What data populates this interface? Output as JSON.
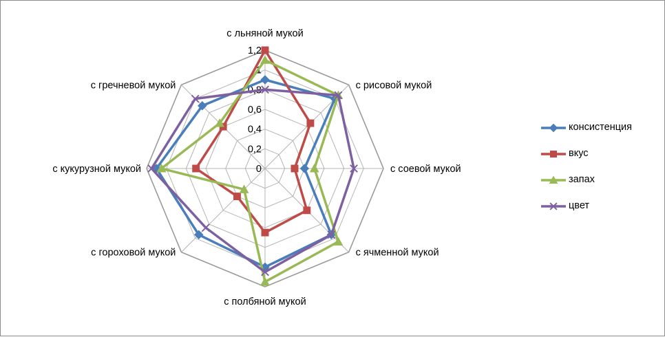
{
  "chart_data": {
    "type": "radar",
    "title": "",
    "categories": [
      "с льняной мукой",
      "с рисовой мукой",
      "с соевой мукой",
      "с ячменной мукой",
      "с полбяной мукой",
      "с гороховой мукой",
      "с кукурузной мукой",
      "с гречневой мукой"
    ],
    "ticks": [
      "0",
      "0,2",
      "0,4",
      "0,6",
      "0,8",
      "1",
      "1,2"
    ],
    "tick_values": [
      0,
      0.2,
      0.4,
      0.6,
      0.8,
      1.0,
      1.2
    ],
    "rlim": [
      0,
      1.2
    ],
    "grid": true,
    "legend_position": "right",
    "series": [
      {
        "name": "консистенция",
        "color": "#4a7ebb",
        "marker": "diamond",
        "values": [
          0.9,
          1.0,
          0.4,
          0.95,
          1.0,
          0.95,
          1.1,
          0.9
        ]
      },
      {
        "name": "вкус",
        "color": "#be4b48",
        "marker": "square",
        "values": [
          1.2,
          0.65,
          0.3,
          0.6,
          0.65,
          0.4,
          0.7,
          0.6
        ]
      },
      {
        "name": "запах",
        "color": "#98b954",
        "marker": "triangle",
        "values": [
          1.1,
          1.05,
          0.5,
          1.05,
          1.15,
          0.3,
          1.05,
          0.65
        ]
      },
      {
        "name": "цвет",
        "color": "#7d60a0",
        "marker": "x",
        "values": [
          0.8,
          1.05,
          0.9,
          0.95,
          1.05,
          0.85,
          1.15,
          1.0
        ]
      }
    ]
  }
}
